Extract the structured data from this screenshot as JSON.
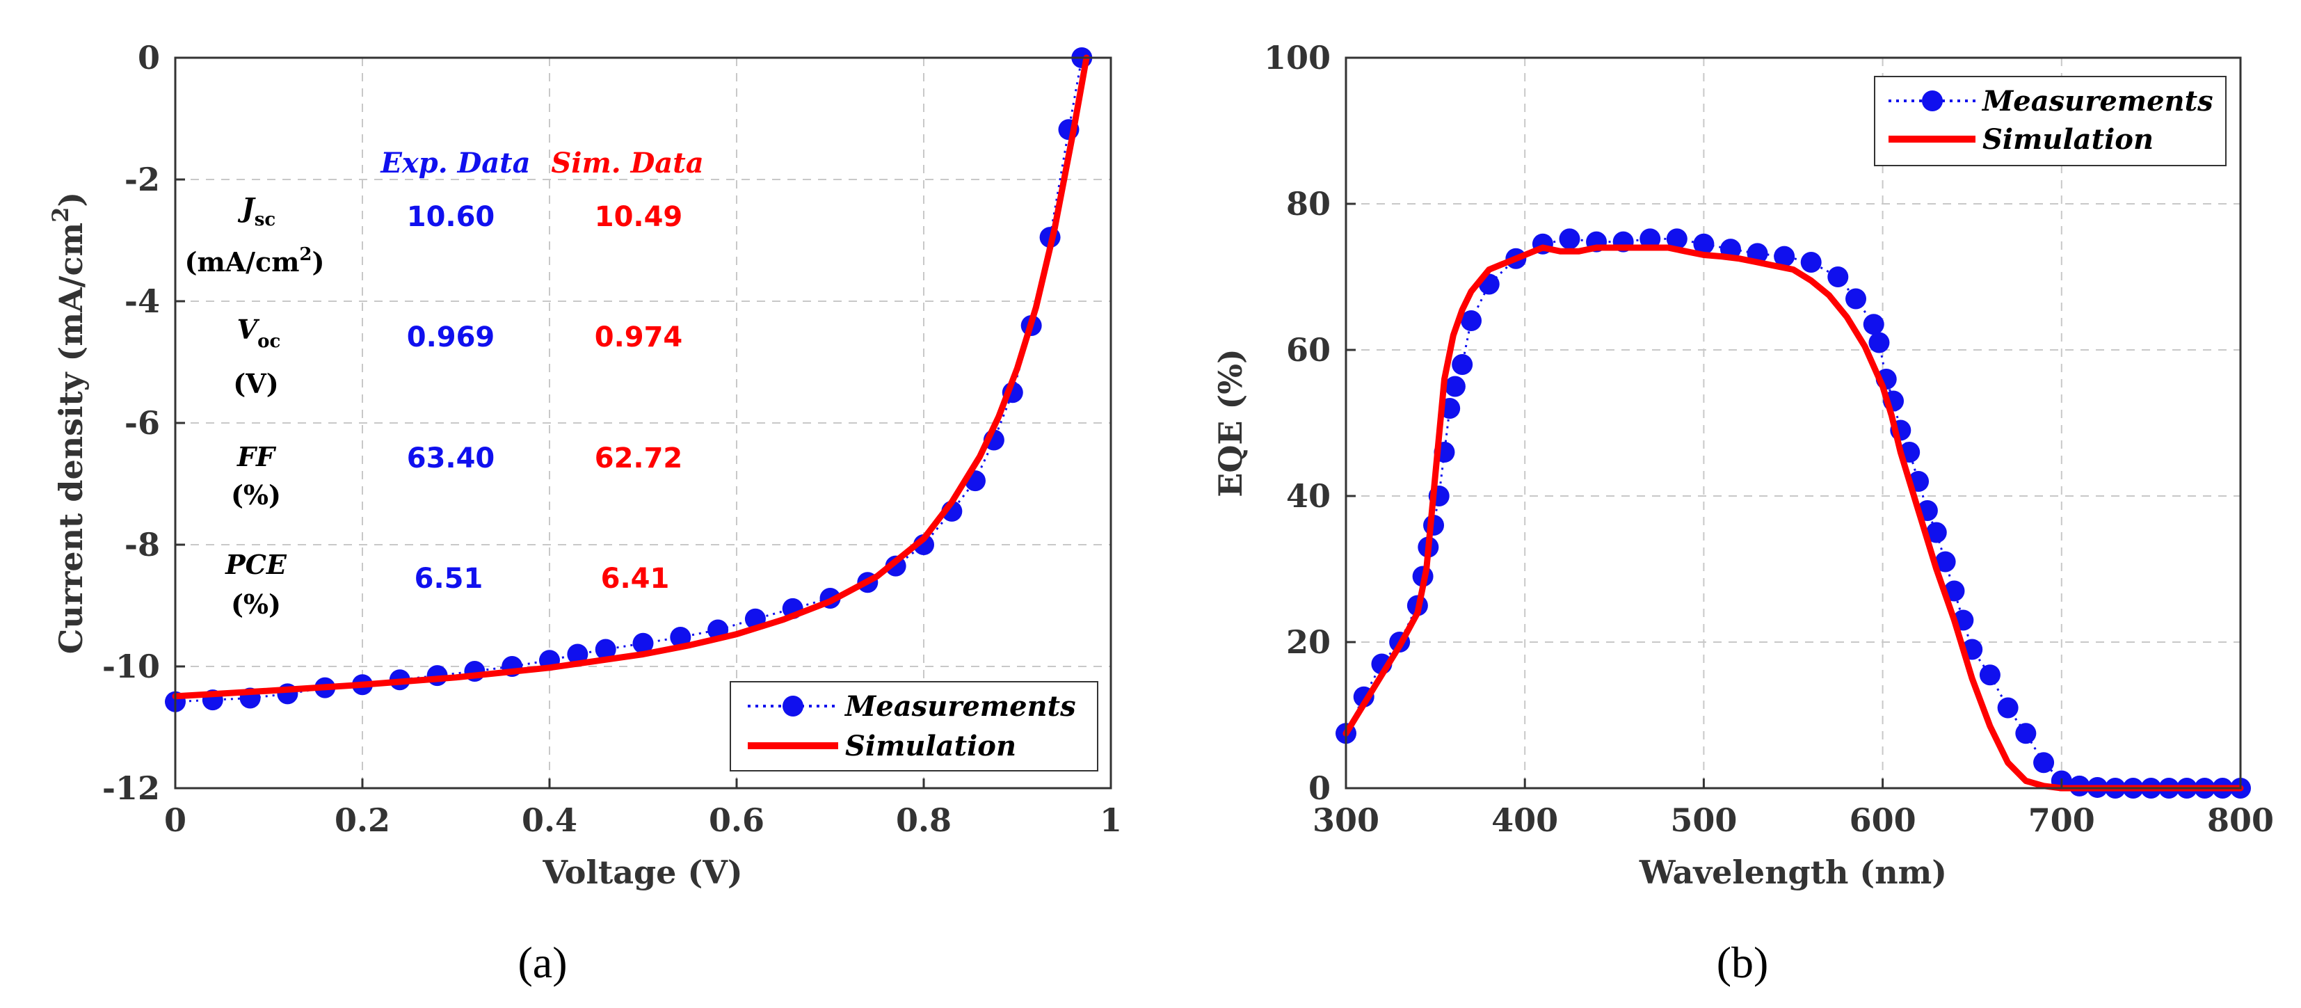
{
  "colors": {
    "measurement": "#1010ee",
    "simulation": "#ff0000",
    "axis": "#333333"
  },
  "chart_data": [
    {
      "type": "line",
      "panel_label": "(a)",
      "xlabel": "Voltage (V)",
      "ylabel": "Current density (mA/cm",
      "ylabel_sup": "2",
      "ylabel_close": ")",
      "xlim": [
        0,
        1
      ],
      "ylim": [
        -12,
        0
      ],
      "xticks": [
        0,
        0.2,
        0.4,
        0.6,
        0.8,
        1
      ],
      "xtick_labels": [
        "0",
        "0.2",
        "0.4",
        "0.6",
        "0.8",
        "1"
      ],
      "yticks": [
        0,
        -2,
        -4,
        -6,
        -8,
        -10,
        -12
      ],
      "ytick_labels": [
        "0",
        "-2",
        "-4",
        "-6",
        "-8",
        "-10",
        "-12"
      ],
      "grid": true,
      "legend_position": "bottom-right",
      "legend": [
        "Measurements",
        "Simulation"
      ],
      "series": [
        {
          "name": "Measurements",
          "style": "dotted-markers",
          "x": [
            0,
            0.04,
            0.08,
            0.12,
            0.16,
            0.2,
            0.24,
            0.28,
            0.32,
            0.36,
            0.4,
            0.43,
            0.46,
            0.5,
            0.54,
            0.58,
            0.62,
            0.66,
            0.7,
            0.74,
            0.77,
            0.8,
            0.83,
            0.855,
            0.875,
            0.895,
            0.915,
            0.935,
            0.955,
            0.969
          ],
          "y": [
            -10.58,
            -10.55,
            -10.52,
            -10.45,
            -10.35,
            -10.3,
            -10.22,
            -10.15,
            -10.08,
            -10.0,
            -9.9,
            -9.8,
            -9.72,
            -9.62,
            -9.52,
            -9.4,
            -9.22,
            -9.05,
            -8.88,
            -8.62,
            -8.35,
            -8.0,
            -7.45,
            -6.95,
            -6.28,
            -5.5,
            -4.4,
            -2.95,
            -1.18,
            0.0
          ]
        },
        {
          "name": "Simulation",
          "style": "solid",
          "x": [
            0,
            0.1,
            0.2,
            0.3,
            0.4,
            0.5,
            0.55,
            0.6,
            0.65,
            0.7,
            0.75,
            0.8,
            0.83,
            0.86,
            0.88,
            0.9,
            0.92,
            0.94,
            0.96,
            0.974
          ],
          "y": [
            -10.49,
            -10.4,
            -10.3,
            -10.18,
            -10.02,
            -9.8,
            -9.65,
            -9.47,
            -9.23,
            -8.93,
            -8.52,
            -7.9,
            -7.3,
            -6.55,
            -5.9,
            -5.1,
            -4.1,
            -2.8,
            -1.2,
            0.0
          ]
        }
      ],
      "table": {
        "headers": [
          "Exp. Data",
          "Sim. Data"
        ],
        "rows": [
          {
            "label": "J",
            "label_sub": "sc",
            "unit": "(mA/cm",
            "unit_sup": "2",
            "unit_close": ")",
            "exp": "10.60",
            "sim": "10.49"
          },
          {
            "label": "V",
            "label_sub": "oc",
            "unit": "(V)",
            "exp": "0.969",
            "sim": "0.974"
          },
          {
            "label": "FF",
            "unit": "(%)",
            "exp": "63.40",
            "sim": "62.72"
          },
          {
            "label": "PCE",
            "unit": "(%)",
            "exp": "6.51",
            "sim": "6.41"
          }
        ]
      }
    },
    {
      "type": "line",
      "panel_label": "(b)",
      "xlabel": "Wavelength (nm)",
      "ylabel": "EQE (%)",
      "xlim": [
        300,
        800
      ],
      "ylim": [
        0,
        100
      ],
      "xticks": [
        300,
        400,
        500,
        600,
        700,
        800
      ],
      "xtick_labels": [
        "300",
        "400",
        "500",
        "600",
        "700",
        "800"
      ],
      "yticks": [
        0,
        20,
        40,
        60,
        80,
        100
      ],
      "ytick_labels": [
        "0",
        "20",
        "40",
        "60",
        "80",
        "100"
      ],
      "grid": true,
      "legend_position": "top-right",
      "legend": [
        "Measurements",
        "Simulation"
      ],
      "series": [
        {
          "name": "Measurements",
          "style": "dotted-markers",
          "x": [
            300,
            310,
            320,
            330,
            340,
            343,
            346,
            349,
            352,
            355,
            358,
            361,
            365,
            370,
            380,
            395,
            410,
            425,
            440,
            455,
            470,
            485,
            500,
            515,
            530,
            545,
            560,
            575,
            585,
            595,
            598,
            602,
            606,
            610,
            615,
            620,
            625,
            630,
            635,
            640,
            645,
            650,
            660,
            670,
            680,
            690,
            700,
            710,
            720,
            730,
            740,
            750,
            760,
            770,
            780,
            790,
            800
          ],
          "y": [
            7.5,
            12.5,
            17,
            20,
            25,
            29,
            33,
            36,
            40,
            46,
            52,
            55,
            58,
            64,
            69,
            72.5,
            74.5,
            75.2,
            74.8,
            74.8,
            75.2,
            75.2,
            74.5,
            73.8,
            73.2,
            72.8,
            72,
            70,
            67,
            63.5,
            61,
            56,
            53,
            49,
            46,
            42,
            38,
            35,
            31,
            27,
            23,
            19,
            15.5,
            11,
            7.5,
            3.5,
            1.0,
            0.3,
            0.1,
            0,
            0,
            0,
            0,
            0,
            0,
            0,
            0
          ]
        },
        {
          "name": "Simulation",
          "style": "solid",
          "x": [
            300,
            310,
            320,
            330,
            340,
            345,
            350,
            355,
            360,
            365,
            370,
            380,
            390,
            400,
            410,
            420,
            430,
            440,
            450,
            460,
            470,
            480,
            490,
            500,
            510,
            520,
            530,
            540,
            550,
            560,
            570,
            580,
            590,
            600,
            605,
            610,
            620,
            630,
            640,
            650,
            660,
            670,
            680,
            690,
            700,
            720,
            740,
            760,
            780,
            800
          ],
          "y": [
            7.5,
            11.5,
            15.5,
            19.5,
            24,
            30,
            43,
            56,
            62,
            65.5,
            68,
            71,
            72,
            73,
            74,
            73.5,
            73.5,
            74,
            74,
            74,
            74,
            74,
            73.5,
            73,
            72.8,
            72.5,
            72,
            71.5,
            71,
            69.5,
            67.5,
            64.5,
            60.5,
            55,
            51,
            46,
            38,
            30,
            23,
            15,
            8.5,
            3.5,
            1.0,
            0.3,
            0,
            0,
            0,
            0,
            0,
            0
          ]
        }
      ]
    }
  ]
}
